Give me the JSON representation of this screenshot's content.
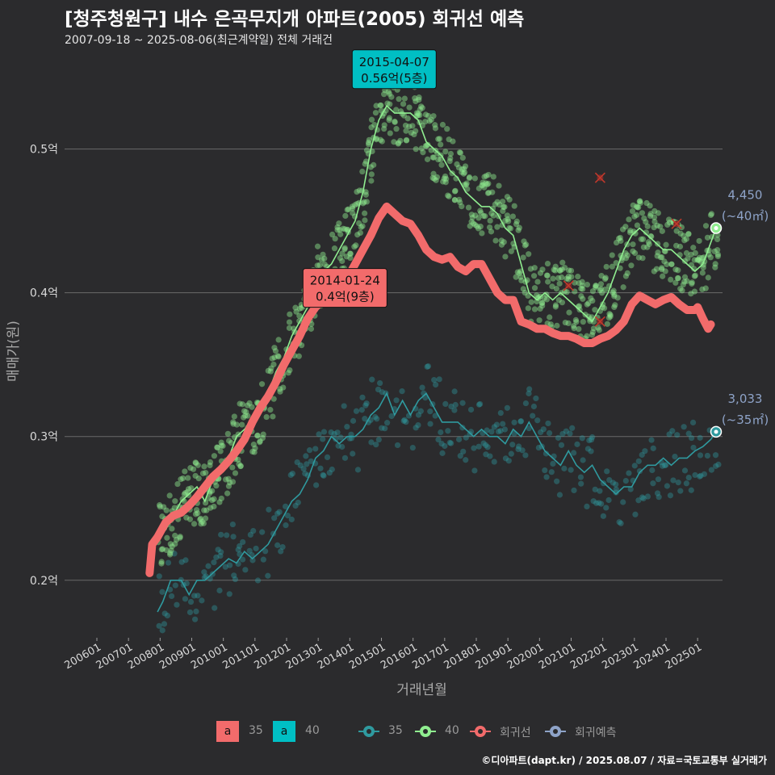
{
  "title": "[청주청원구] 내수 은곡무지개 아파트(2005) 회귀선 예측",
  "subtitle": "2007-09-18 ~ 2025-08-06(최근계약일) 전체 거래건",
  "credit": "©디아파트(dapt.kr) / 2025.08.07 / 자료=국토교통부 실거래가",
  "legend": {
    "box_items": [
      {
        "symbol": "a",
        "label": "35",
        "color": "#f26b6b"
      },
      {
        "symbol": "a",
        "label": "40",
        "color": "#00bfc4"
      }
    ],
    "line_items": [
      {
        "label": "35",
        "color": "#2f9a9f"
      },
      {
        "label": "40",
        "color": "#90ee90"
      },
      {
        "label": "회귀선",
        "color": "#f26b6b"
      },
      {
        "label": "회귀예측",
        "color": "#8ea3c8"
      }
    ]
  },
  "chart_data": {
    "type": "line",
    "xlabel": "거래년월",
    "ylabel": "매매가(원)",
    "ylim": [
      0.16,
      0.57
    ],
    "yticks": [
      {
        "value": 0.2,
        "label": "0.2억"
      },
      {
        "value": 0.3,
        "label": "0.3억"
      },
      {
        "value": 0.4,
        "label": "0.4억"
      },
      {
        "value": 0.5,
        "label": "0.5억"
      }
    ],
    "xlim": [
      "2006-01",
      "2025-08"
    ],
    "xticks": [
      "200601",
      "200701",
      "200801",
      "200901",
      "201001",
      "201101",
      "201201",
      "201301",
      "201401",
      "201501",
      "201601",
      "201701",
      "201801",
      "201901",
      "202001",
      "202101",
      "202201",
      "202301",
      "202401",
      "202501"
    ],
    "grid": true,
    "colors": {
      "s35": "#2f9a9f",
      "s40": "#90ee90",
      "regression": "#f26b6b",
      "prediction": "#8ea3c8",
      "cancelled": "#c0392b"
    },
    "series": [
      {
        "name": "35",
        "points": [
          [
            "2007-12",
            0.178
          ],
          [
            "2008-02",
            0.185
          ],
          [
            "2008-05",
            0.2
          ],
          [
            "2008-09",
            0.2
          ],
          [
            "2008-12",
            0.19
          ],
          [
            "2009-03",
            0.2
          ],
          [
            "2009-06",
            0.2
          ],
          [
            "2009-09",
            0.205
          ],
          [
            "2009-12",
            0.21
          ],
          [
            "2010-03",
            0.215
          ],
          [
            "2010-06",
            0.212
          ],
          [
            "2010-09",
            0.22
          ],
          [
            "2010-12",
            0.215
          ],
          [
            "2011-03",
            0.22
          ],
          [
            "2011-06",
            0.225
          ],
          [
            "2011-09",
            0.235
          ],
          [
            "2011-12",
            0.245
          ],
          [
            "2012-03",
            0.255
          ],
          [
            "2012-06",
            0.26
          ],
          [
            "2012-09",
            0.27
          ],
          [
            "2012-12",
            0.285
          ],
          [
            "2013-03",
            0.29
          ],
          [
            "2013-06",
            0.3
          ],
          [
            "2013-09",
            0.295
          ],
          [
            "2013-12",
            0.3
          ],
          [
            "2014-03",
            0.3
          ],
          [
            "2014-06",
            0.305
          ],
          [
            "2014-09",
            0.315
          ],
          [
            "2014-12",
            0.32
          ],
          [
            "2015-03",
            0.33
          ],
          [
            "2015-06",
            0.315
          ],
          [
            "2015-09",
            0.325
          ],
          [
            "2015-12",
            0.315
          ],
          [
            "2016-03",
            0.325
          ],
          [
            "2016-06",
            0.33
          ],
          [
            "2016-09",
            0.32
          ],
          [
            "2016-12",
            0.31
          ],
          [
            "2017-03",
            0.31
          ],
          [
            "2017-06",
            0.31
          ],
          [
            "2017-09",
            0.305
          ],
          [
            "2017-12",
            0.3
          ],
          [
            "2018-03",
            0.305
          ],
          [
            "2018-06",
            0.3
          ],
          [
            "2018-09",
            0.3
          ],
          [
            "2018-12",
            0.295
          ],
          [
            "2019-03",
            0.305
          ],
          [
            "2019-06",
            0.3
          ],
          [
            "2019-09",
            0.31
          ],
          [
            "2019-12",
            0.3
          ],
          [
            "2020-03",
            0.29
          ],
          [
            "2020-06",
            0.285
          ],
          [
            "2020-09",
            0.28
          ],
          [
            "2020-12",
            0.29
          ],
          [
            "2021-03",
            0.28
          ],
          [
            "2021-06",
            0.275
          ],
          [
            "2021-09",
            0.28
          ],
          [
            "2021-12",
            0.27
          ],
          [
            "2022-03",
            0.265
          ],
          [
            "2022-06",
            0.26
          ],
          [
            "2022-09",
            0.265
          ],
          [
            "2022-12",
            0.265
          ],
          [
            "2023-03",
            0.275
          ],
          [
            "2023-06",
            0.28
          ],
          [
            "2023-09",
            0.28
          ],
          [
            "2023-12",
            0.285
          ],
          [
            "2024-03",
            0.28
          ],
          [
            "2024-06",
            0.285
          ],
          [
            "2024-09",
            0.285
          ],
          [
            "2024-12",
            0.29
          ],
          [
            "2025-03",
            0.293
          ],
          [
            "2025-06",
            0.298
          ],
          [
            "2025-08",
            0.3033
          ]
        ]
      },
      {
        "name": "40",
        "points": [
          [
            "2007-12",
            0.23
          ],
          [
            "2008-03",
            0.235
          ],
          [
            "2008-06",
            0.245
          ],
          [
            "2008-09",
            0.255
          ],
          [
            "2008-12",
            0.26
          ],
          [
            "2009-03",
            0.265
          ],
          [
            "2009-06",
            0.255
          ],
          [
            "2009-09",
            0.27
          ],
          [
            "2009-12",
            0.275
          ],
          [
            "2010-03",
            0.285
          ],
          [
            "2010-06",
            0.3
          ],
          [
            "2010-09",
            0.305
          ],
          [
            "2010-12",
            0.31
          ],
          [
            "2011-03",
            0.32
          ],
          [
            "2011-06",
            0.33
          ],
          [
            "2011-09",
            0.345
          ],
          [
            "2011-12",
            0.355
          ],
          [
            "2012-03",
            0.37
          ],
          [
            "2012-06",
            0.38
          ],
          [
            "2012-09",
            0.39
          ],
          [
            "2012-12",
            0.41
          ],
          [
            "2013-03",
            0.415
          ],
          [
            "2013-06",
            0.42
          ],
          [
            "2013-09",
            0.43
          ],
          [
            "2013-12",
            0.44
          ],
          [
            "2014-03",
            0.45
          ],
          [
            "2014-06",
            0.47
          ],
          [
            "2014-09",
            0.5
          ],
          [
            "2014-12",
            0.52
          ],
          [
            "2015-03",
            0.53
          ],
          [
            "2015-06",
            0.525
          ],
          [
            "2015-09",
            0.525
          ],
          [
            "2015-12",
            0.525
          ],
          [
            "2016-03",
            0.52
          ],
          [
            "2016-06",
            0.505
          ],
          [
            "2016-09",
            0.5
          ],
          [
            "2016-12",
            0.495
          ],
          [
            "2017-03",
            0.485
          ],
          [
            "2017-06",
            0.48
          ],
          [
            "2017-09",
            0.47
          ],
          [
            "2017-12",
            0.465
          ],
          [
            "2018-03",
            0.46
          ],
          [
            "2018-06",
            0.46
          ],
          [
            "2018-09",
            0.455
          ],
          [
            "2018-12",
            0.445
          ],
          [
            "2019-03",
            0.44
          ],
          [
            "2019-06",
            0.42
          ],
          [
            "2019-09",
            0.4
          ],
          [
            "2019-12",
            0.395
          ],
          [
            "2020-03",
            0.4
          ],
          [
            "2020-06",
            0.395
          ],
          [
            "2020-09",
            0.4
          ],
          [
            "2020-12",
            0.395
          ],
          [
            "2021-03",
            0.39
          ],
          [
            "2021-06",
            0.385
          ],
          [
            "2021-09",
            0.38
          ],
          [
            "2021-12",
            0.39
          ],
          [
            "2022-03",
            0.4
          ],
          [
            "2022-06",
            0.415
          ],
          [
            "2022-09",
            0.43
          ],
          [
            "2022-12",
            0.44
          ],
          [
            "2023-03",
            0.445
          ],
          [
            "2023-06",
            0.44
          ],
          [
            "2023-09",
            0.435
          ],
          [
            "2023-12",
            0.43
          ],
          [
            "2024-03",
            0.43
          ],
          [
            "2024-06",
            0.425
          ],
          [
            "2024-09",
            0.42
          ],
          [
            "2024-12",
            0.415
          ],
          [
            "2025-03",
            0.42
          ],
          [
            "2025-06",
            0.435
          ],
          [
            "2025-08",
            0.445
          ]
        ]
      },
      {
        "name": "회귀선",
        "points": [
          [
            "2007-09",
            0.205
          ],
          [
            "2007-10",
            0.225
          ],
          [
            "2007-12",
            0.23
          ],
          [
            "2008-03",
            0.24
          ],
          [
            "2008-06",
            0.245
          ],
          [
            "2008-09",
            0.247
          ],
          [
            "2008-12",
            0.252
          ],
          [
            "2009-03",
            0.258
          ],
          [
            "2009-06",
            0.265
          ],
          [
            "2009-09",
            0.272
          ],
          [
            "2009-12",
            0.277
          ],
          [
            "2010-03",
            0.283
          ],
          [
            "2010-06",
            0.29
          ],
          [
            "2010-09",
            0.298
          ],
          [
            "2010-12",
            0.31
          ],
          [
            "2011-03",
            0.32
          ],
          [
            "2011-06",
            0.328
          ],
          [
            "2011-09",
            0.338
          ],
          [
            "2011-12",
            0.35
          ],
          [
            "2012-03",
            0.36
          ],
          [
            "2012-06",
            0.37
          ],
          [
            "2012-09",
            0.382
          ],
          [
            "2012-12",
            0.39
          ],
          [
            "2013-03",
            0.395
          ],
          [
            "2013-06",
            0.398
          ],
          [
            "2013-09",
            0.405
          ],
          [
            "2013-12",
            0.41
          ],
          [
            "2014-03",
            0.42
          ],
          [
            "2014-06",
            0.43
          ],
          [
            "2014-09",
            0.44
          ],
          [
            "2014-12",
            0.452
          ],
          [
            "2015-03",
            0.46
          ],
          [
            "2015-06",
            0.455
          ],
          [
            "2015-09",
            0.45
          ],
          [
            "2015-12",
            0.448
          ],
          [
            "2016-03",
            0.44
          ],
          [
            "2016-06",
            0.43
          ],
          [
            "2016-09",
            0.425
          ],
          [
            "2016-12",
            0.423
          ],
          [
            "2017-03",
            0.425
          ],
          [
            "2017-06",
            0.418
          ],
          [
            "2017-09",
            0.415
          ],
          [
            "2017-12",
            0.42
          ],
          [
            "2018-03",
            0.42
          ],
          [
            "2018-06",
            0.41
          ],
          [
            "2018-09",
            0.4
          ],
          [
            "2018-12",
            0.395
          ],
          [
            "2019-03",
            0.395
          ],
          [
            "2019-06",
            0.38
          ],
          [
            "2019-09",
            0.378
          ],
          [
            "2019-12",
            0.375
          ],
          [
            "2020-03",
            0.375
          ],
          [
            "2020-06",
            0.372
          ],
          [
            "2020-09",
            0.37
          ],
          [
            "2020-12",
            0.37
          ],
          [
            "2021-03",
            0.368
          ],
          [
            "2021-06",
            0.365
          ],
          [
            "2021-09",
            0.365
          ],
          [
            "2021-12",
            0.368
          ],
          [
            "2022-03",
            0.37
          ],
          [
            "2022-06",
            0.374
          ],
          [
            "2022-09",
            0.38
          ],
          [
            "2022-12",
            0.392
          ],
          [
            "2023-03",
            0.398
          ],
          [
            "2023-06",
            0.395
          ],
          [
            "2023-09",
            0.392
          ],
          [
            "2023-12",
            0.395
          ],
          [
            "2024-03",
            0.397
          ],
          [
            "2024-06",
            0.392
          ],
          [
            "2024-09",
            0.388
          ],
          [
            "2024-12",
            0.388
          ],
          [
            "2025-01",
            0.39
          ],
          [
            "2025-03",
            0.382
          ],
          [
            "2025-05",
            0.375
          ],
          [
            "2025-06",
            0.378
          ]
        ]
      }
    ],
    "annotations": [
      {
        "date": "2014-01-24",
        "price_label": "0.4억(9층)",
        "at": [
          "2014-01",
          0.4
        ],
        "color": "#f26b6b"
      },
      {
        "date": "2015-04-07",
        "price_label": "0.56억(5층)",
        "at": [
          "2015-04",
          0.56
        ],
        "color": "#00bfc4"
      }
    ],
    "predictions": [
      {
        "value_label": "4,450",
        "area_label": "(~40㎡)",
        "at": [
          "2025-08",
          0.445
        ],
        "color": "#90ee90"
      },
      {
        "value_label": "3,033",
        "area_label": "(~35㎡)",
        "at": [
          "2025-08",
          0.3033
        ],
        "color": "#2f9a9f"
      }
    ],
    "cancelled_deals": [
      [
        "2021-12",
        0.48
      ],
      [
        "2024-05",
        0.448
      ],
      [
        "2020-12",
        0.405
      ],
      [
        "2021-12",
        0.38
      ]
    ]
  }
}
